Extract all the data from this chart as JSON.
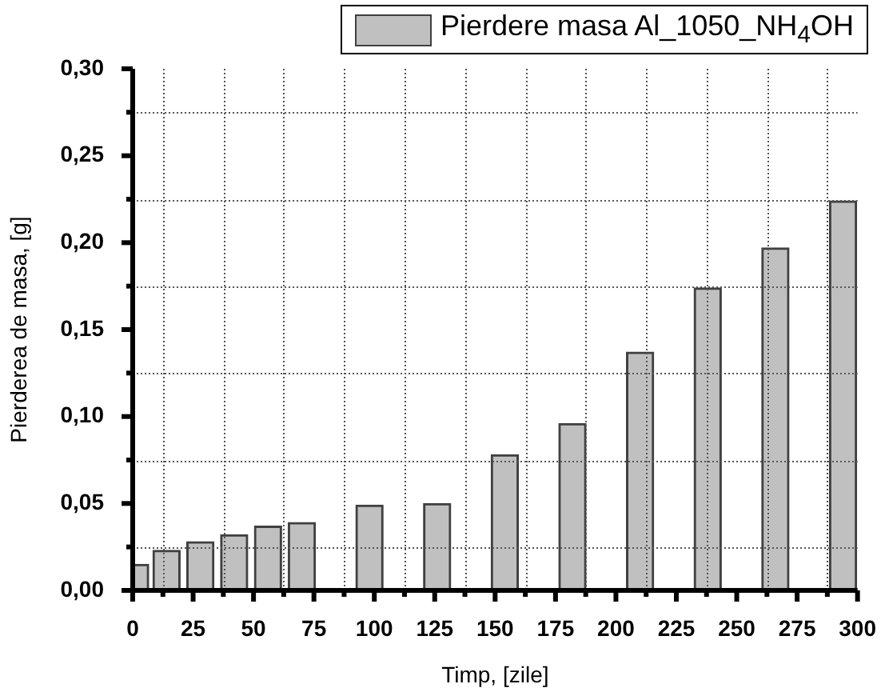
{
  "chart_data": {
    "type": "bar",
    "xlabel": "Timp, [zile]",
    "ylabel": "Pierderea de masa, [g]",
    "x": [
      1,
      14,
      28,
      42,
      56,
      70,
      98,
      126,
      154,
      182,
      210,
      238,
      266,
      294
    ],
    "series": [
      {
        "name": "Pierdere masa Al_1050_NH$_{4}$OH",
        "color": "#c0c0c0",
        "values": [
          0.015,
          0.023,
          0.028,
          0.032,
          0.037,
          0.039,
          0.049,
          0.05,
          0.078,
          0.096,
          0.137,
          0.174,
          0.197,
          0.224
        ]
      }
    ],
    "xlim": [
      0,
      300
    ],
    "xticks": [
      0,
      {
        "value": 12.5,
        "label": null
      },
      25,
      {
        "value": 37.5,
        "label": null
      },
      50,
      {
        "value": 62.5,
        "label": null
      },
      75,
      {
        "value": 87.5,
        "label": null
      },
      100,
      {
        "value": 112.5,
        "label": null
      },
      125,
      {
        "value": 137.5,
        "label": null
      },
      150,
      {
        "value": 162.5,
        "label": null
      },
      175,
      {
        "value": 187.5,
        "label": null
      },
      200,
      {
        "value": 212.5,
        "label": null
      },
      225,
      {
        "value": 237.5,
        "label": null
      },
      250,
      {
        "value": 262.5,
        "label": null
      },
      275,
      {
        "value": 287.5,
        "label": null
      },
      300
    ],
    "ylim": [
      0,
      0.3
    ],
    "yticks": [
      {
        "value": 0,
        "label": "0,00"
      },
      {
        "value": 0.025,
        "label": null
      },
      {
        "value": 0.05,
        "label": "0,05"
      },
      {
        "value": 0.075,
        "label": null
      },
      {
        "value": 0.1,
        "label": "0,10"
      },
      {
        "value": 0.125,
        "label": null
      },
      {
        "value": 0.15,
        "label": "0,15"
      },
      {
        "value": 0.175,
        "label": null
      },
      {
        "value": 0.2,
        "label": "0,20"
      },
      {
        "value": 0.225,
        "label": null
      },
      {
        "value": 0.25,
        "label": "0,25"
      },
      {
        "value": 0.275,
        "label": null
      },
      {
        "value": 0.3,
        "label": "0,30"
      }
    ],
    "grid": true,
    "legend": "top right"
  }
}
